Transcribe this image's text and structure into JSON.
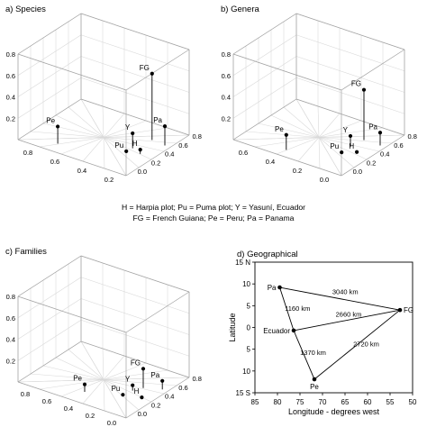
{
  "caption": {
    "line1": "H = Harpia plot; Pu = Puma plot; Y = Yasuní, Ecuador",
    "line2": "FG = French Guiana; Pe = Peru; Pa = Panama"
  },
  "chart_data": [
    {
      "type": "scatter",
      "title": "a) Species",
      "z_ticks": [
        "0.0",
        "0.2",
        "0.4",
        "0.6",
        "0.8"
      ],
      "left_axis_ticks": [
        "0.8",
        "0.6",
        "0.4",
        "0.2"
      ],
      "right_axis_ticks": [
        "0.8",
        "0.6",
        "0.4",
        "0.2",
        "0.0"
      ],
      "points": [
        {
          "label": "FG",
          "x": 0.18,
          "y": 0.72,
          "z": 0.62
        },
        {
          "label": "Pa",
          "x": 0.05,
          "y": 0.7,
          "z": 0.18
        },
        {
          "label": "Pe",
          "x": 0.72,
          "y": 0.15,
          "z": 0.16
        },
        {
          "label": "Y",
          "x": 0.22,
          "y": 0.48,
          "z": 0.14
        },
        {
          "label": "H",
          "x": 0.12,
          "y": 0.43,
          "z": 0.04
        },
        {
          "label": "Pu",
          "x": 0.22,
          "y": 0.38,
          "z": 0.01
        }
      ]
    },
    {
      "type": "scatter",
      "title": "b) Genera",
      "z_ticks": [
        "0.0",
        "0.2",
        "0.4",
        "0.6",
        "0.8"
      ],
      "left_axis_ticks": [
        "0.6",
        "0.4",
        "0.2",
        "0.0"
      ],
      "right_axis_ticks": [
        "0.8",
        "0.6",
        "0.4",
        "0.2",
        "0.0"
      ],
      "points": [
        {
          "label": "FG",
          "x": 0.2,
          "y": 0.7,
          "z": 0.47
        },
        {
          "label": "Pa",
          "x": 0.05,
          "y": 0.7,
          "z": 0.12
        },
        {
          "label": "Pe",
          "x": 0.58,
          "y": 0.12,
          "z": 0.14
        },
        {
          "label": "Y",
          "x": 0.22,
          "y": 0.52,
          "z": 0.1
        },
        {
          "label": "H",
          "x": 0.12,
          "y": 0.45,
          "z": 0.01
        },
        {
          "label": "Pu",
          "x": 0.22,
          "y": 0.38,
          "z": 0.0
        }
      ]
    },
    {
      "type": "scatter",
      "title": "c) Families",
      "z_ticks": [
        "0.0",
        "0.2",
        "0.4",
        "0.6",
        "0.8"
      ],
      "left_axis_ticks": [
        "0.8",
        "0.6",
        "0.4",
        "0.2",
        "0.0"
      ],
      "right_axis_ticks": [
        "0.8",
        "0.6",
        "0.4",
        "0.2",
        "0.0"
      ],
      "points": [
        {
          "label": "FG",
          "x": 0.18,
          "y": 0.58,
          "z": 0.18
        },
        {
          "label": "Pa",
          "x": 0.05,
          "y": 0.66,
          "z": 0.08
        },
        {
          "label": "Pe",
          "x": 0.5,
          "y": 0.2,
          "z": 0.07
        },
        {
          "label": "Y",
          "x": 0.22,
          "y": 0.48,
          "z": 0.05
        },
        {
          "label": "H",
          "x": 0.1,
          "y": 0.42,
          "z": 0.0
        },
        {
          "label": "Pu",
          "x": 0.24,
          "y": 0.36,
          "z": 0.0
        }
      ]
    },
    {
      "type": "map",
      "title": "d) Geographical",
      "xlabel": "Longitude - degrees west",
      "ylabel": "Latitude",
      "xlim": [
        85,
        50
      ],
      "ylim": [
        -15,
        15
      ],
      "x_ticks": [
        85,
        80,
        75,
        70,
        65,
        60,
        55,
        50
      ],
      "y_ticks": [
        {
          "value": 15,
          "label": "15 N"
        },
        {
          "value": 10,
          "label": "10"
        },
        {
          "value": 5,
          "label": "5"
        },
        {
          "value": 0,
          "label": "0"
        },
        {
          "value": -5,
          "label": "5"
        },
        {
          "value": -10,
          "label": "10"
        },
        {
          "value": -15,
          "label": "15 S"
        }
      ],
      "sites": [
        {
          "label": "Pa",
          "lon": 79.5,
          "lat": 9.2
        },
        {
          "label": "FG",
          "lon": 52.8,
          "lat": 4.0
        },
        {
          "label": "Ecuador",
          "lon": 76.4,
          "lat": -0.7
        },
        {
          "label": "Pe",
          "lon": 71.8,
          "lat": -11.9
        }
      ],
      "links": [
        {
          "from": "Pa",
          "to": "FG",
          "label": "3040 km"
        },
        {
          "from": "Pa",
          "to": "Ecuador",
          "label": "1160 km"
        },
        {
          "from": "Ecuador",
          "to": "FG",
          "label": "2660 km"
        },
        {
          "from": "Ecuador",
          "to": "Pe",
          "label": "1370 km"
        },
        {
          "from": "Pe",
          "to": "FG",
          "label": "2720 km"
        }
      ]
    }
  ]
}
